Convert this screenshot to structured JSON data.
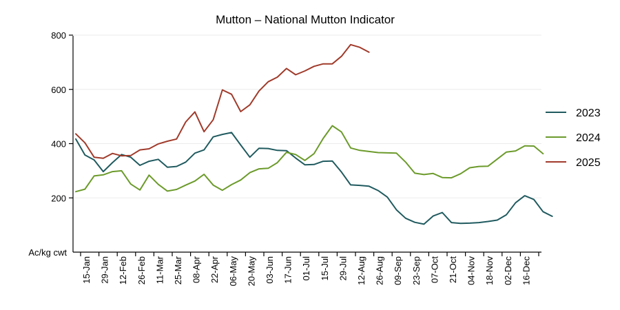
{
  "chart_data": {
    "type": "line",
    "title": "Mutton – National Mutton Indicator",
    "ylabel": "Ac/kg cwt",
    "ylim": [
      0,
      800
    ],
    "yticks": [
      200,
      400,
      600,
      800
    ],
    "grid": "horizontal",
    "legend_position": "right",
    "x_tick_labels": [
      "15-Jan",
      "29-Jan",
      "12-Feb",
      "26-Feb",
      "11-Mar",
      "25-Mar",
      "08-Apr",
      "22-Apr",
      "06-May",
      "20-May",
      "03-Jun",
      "17-Jun",
      "01-Jul",
      "15-Jul",
      "29-Jul",
      "12-Aug",
      "26-Aug",
      "09-Sep",
      "23-Sep",
      "07-Oct",
      "21-Oct",
      "04-Nov",
      "18-Nov",
      "02-Dec",
      "16-Dec"
    ],
    "series": [
      {
        "name": "2023",
        "color": "#1f5a5f",
        "values": [
          417,
          358,
          340,
          297,
          330,
          360,
          350,
          320,
          335,
          342,
          313,
          316,
          332,
          365,
          377,
          425,
          434,
          441,
          395,
          350,
          383,
          382,
          375,
          374,
          347,
          322,
          323,
          335,
          336,
          295,
          248,
          246,
          243,
          227,
          203,
          156,
          125,
          110,
          103,
          133,
          146,
          109,
          106,
          107,
          109,
          113,
          118,
          138,
          182,
          208,
          194,
          149,
          132
        ]
      },
      {
        "name": "2024",
        "color": "#6b9a2a",
        "values": [
          223,
          232,
          281,
          285,
          297,
          300,
          251,
          229,
          284,
          250,
          225,
          231,
          247,
          262,
          287,
          247,
          228,
          249,
          266,
          293,
          307,
          309,
          330,
          368,
          360,
          338,
          363,
          419,
          466,
          443,
          384,
          375,
          371,
          367,
          366,
          365,
          332,
          291,
          286,
          290,
          275,
          274,
          289,
          311,
          316,
          317,
          343,
          369,
          373,
          392,
          391,
          363
        ]
      },
      {
        "name": "2025",
        "color": "#a03a2a",
        "values": [
          436,
          403,
          350,
          346,
          364,
          355,
          356,
          377,
          381,
          399,
          409,
          417,
          480,
          517,
          444,
          488,
          598,
          582,
          518,
          543,
          594,
          628,
          645,
          677,
          654,
          668,
          685,
          694,
          694,
          722,
          765,
          755,
          737
        ]
      }
    ]
  }
}
